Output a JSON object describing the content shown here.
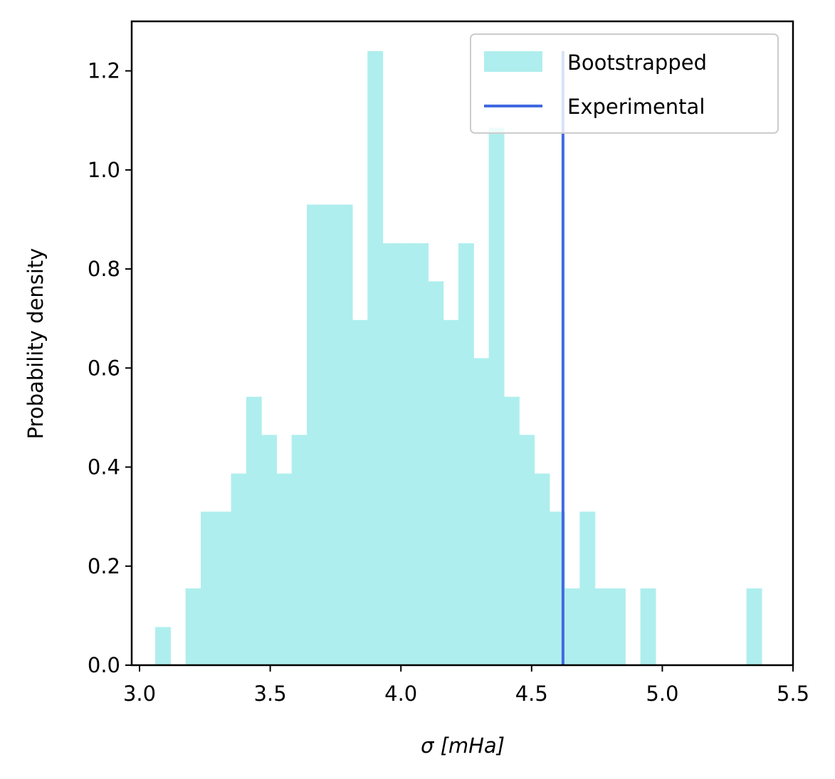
{
  "chart_data": {
    "type": "bar",
    "xlabel": "σ [mHa]",
    "ylabel": "Probability density",
    "xlim": [
      2.97,
      5.5
    ],
    "ylim": [
      0,
      1.3
    ],
    "xticks": [
      "3.0",
      "3.5",
      "4.0",
      "4.5",
      "5.0",
      "5.5"
    ],
    "yticks": [
      "0.0",
      "0.2",
      "0.4",
      "0.6",
      "0.8",
      "1.0",
      "1.2"
    ],
    "grid": false,
    "legend": {
      "placement": "top-right"
    },
    "colors": {
      "bootstrapped": "#afeeee",
      "experimental": "#4169e1"
    },
    "series": [
      {
        "name": "Bootstrapped",
        "kind": "histogram",
        "bin_start": 3.06,
        "bin_width": 0.058,
        "values": [
          0.077,
          0,
          0.155,
          0.31,
          0.31,
          0.387,
          0.542,
          0.465,
          0.387,
          0.465,
          0.93,
          0.93,
          0.93,
          0.697,
          1.24,
          0.852,
          0.852,
          0.852,
          0.775,
          0.697,
          0.852,
          0.62,
          1.085,
          0.542,
          0.465,
          0.387,
          0.31,
          0.155,
          0.31,
          0.155,
          0.155,
          0,
          0.155,
          0,
          0,
          0,
          0,
          0,
          0,
          0.155
        ]
      },
      {
        "name": "Experimental",
        "kind": "vline",
        "x": 4.62,
        "y_top": 1.24
      }
    ]
  }
}
